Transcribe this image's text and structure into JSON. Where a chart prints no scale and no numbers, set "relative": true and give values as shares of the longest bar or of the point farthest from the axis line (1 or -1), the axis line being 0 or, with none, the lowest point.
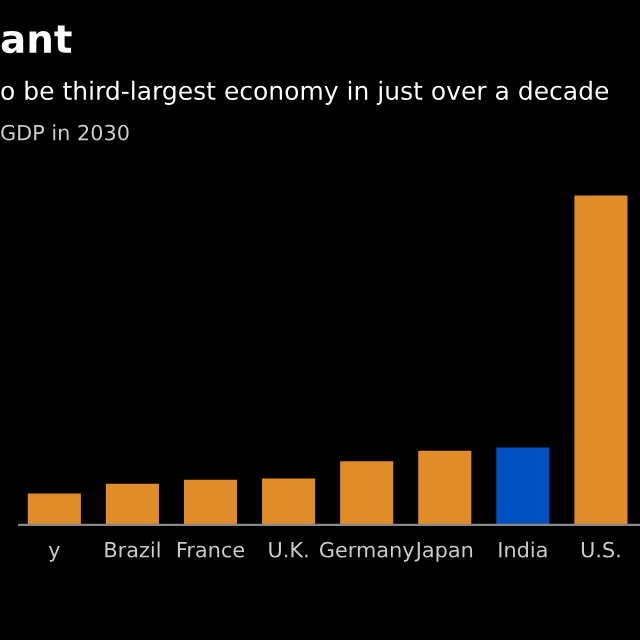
{
  "chart_data": {
    "type": "bar",
    "title": "ant",
    "subtitle": "o be third-largest economy in just over a decade",
    "annotations": [
      "GDP in 2030"
    ],
    "categories": [
      "y",
      "Brazil",
      "France",
      "U.K.",
      "Germany",
      "Japan",
      "India",
      "U.S."
    ],
    "values": [
      0.095,
      0.125,
      0.137,
      0.141,
      0.193,
      0.225,
      0.235,
      1
    ],
    "colors": [
      "#e08c28",
      "#e08c28",
      "#e08c28",
      "#e08c28",
      "#e08c28",
      "#e08c28",
      "#0050c0",
      "#e08c28"
    ],
    "relative": true
  }
}
